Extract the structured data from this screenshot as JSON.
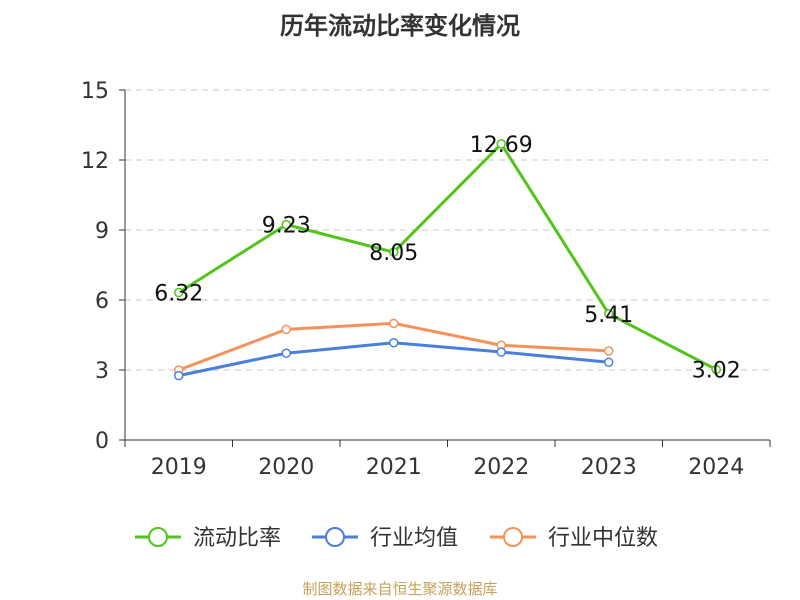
{
  "title": "历年流动比率变化情况",
  "source": "制图数据来自恒生聚源数据库",
  "chart_data": {
    "type": "line",
    "title": "历年流动比率变化情况",
    "categories": [
      "2019",
      "2020",
      "2021",
      "2022",
      "2023",
      "2024"
    ],
    "ylim": [
      0,
      15
    ],
    "yticks": [
      0,
      3,
      6,
      9,
      12,
      15
    ],
    "grid": true,
    "legend_position": "bottom",
    "series": [
      {
        "name": "流动比率",
        "color": "#52c41a",
        "values": [
          6.32,
          9.23,
          8.05,
          12.69,
          5.41,
          3.02
        ],
        "labels": [
          "6.32",
          "9.23",
          "8.05",
          "12.69",
          "5.41",
          "3.02"
        ]
      },
      {
        "name": "行业均值",
        "color": "#4a7fdc",
        "values": [
          2.76,
          3.72,
          4.17,
          3.77,
          3.33,
          null
        ]
      },
      {
        "name": "行业中位数",
        "color": "#f5915a",
        "values": [
          3.0,
          4.74,
          5.0,
          4.06,
          3.82,
          null
        ]
      }
    ]
  }
}
